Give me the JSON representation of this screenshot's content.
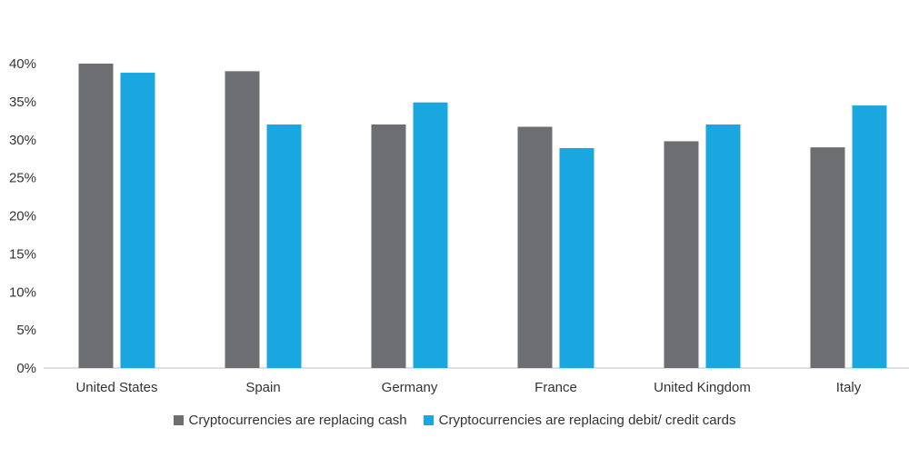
{
  "chart_data": {
    "type": "bar",
    "categories": [
      "United States",
      "Spain",
      "Germany",
      "France",
      "United Kingdom",
      "Italy"
    ],
    "series": [
      {
        "name": "Cryptocurrencies are replacing cash",
        "color": "#6d6e71",
        "values": [
          40,
          39,
          32,
          31.7,
          29.8,
          29
        ]
      },
      {
        "name": "Cryptocurrencies are replacing debit/ credit cards",
        "color": "#1aa7e0",
        "values": [
          38.8,
          32,
          34.9,
          28.9,
          32,
          34.5
        ]
      }
    ],
    "y_ticks": [
      "0%",
      "5%",
      "10%",
      "15%",
      "20%",
      "25%",
      "30%",
      "35%",
      "40%"
    ],
    "ylim": [
      0,
      40
    ],
    "grid": false,
    "legend_position": "bottom"
  }
}
